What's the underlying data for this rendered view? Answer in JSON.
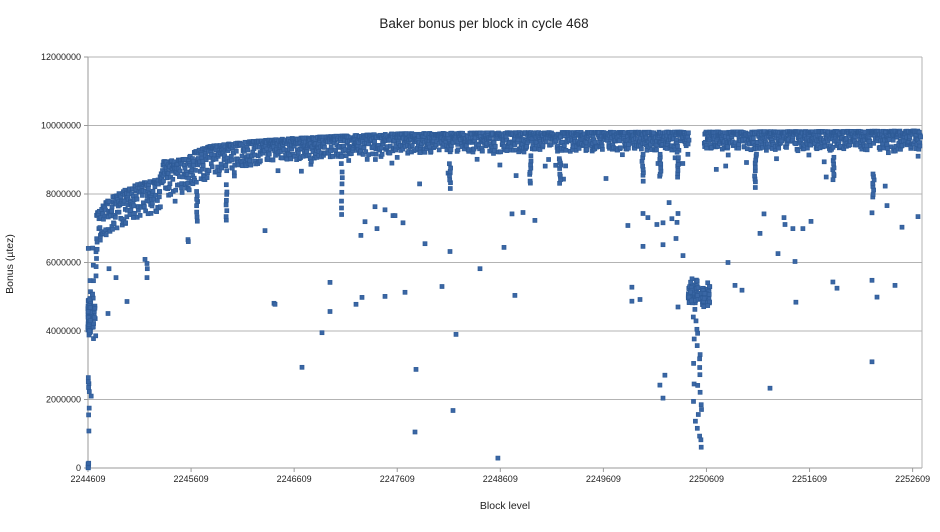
{
  "chart_data": {
    "type": "scatter",
    "title": "Baker bonus per block in cycle 468",
    "xlabel": "Block level",
    "ylabel": "Bonus (µtez)",
    "xlim": [
      2244609,
      2252700
    ],
    "ylim": [
      0,
      12000000
    ],
    "x_ticks": [
      2244609,
      2245609,
      2246609,
      2247609,
      2248609,
      2249609,
      2250609,
      2251609,
      2252609
    ],
    "y_ticks": [
      0,
      2000000,
      4000000,
      6000000,
      8000000,
      10000000,
      12000000
    ],
    "grid": "horizontal-only",
    "legend": "none",
    "marker": {
      "shape": "square",
      "size": 4,
      "fill": "#3a67a5",
      "stroke": "#2e5b97"
    },
    "grid_color": "#b3b3b3",
    "axis_color": "#9a9a9a",
    "synthesis_note": "Dense scatter of ~8000 block bonuses; point cloud described by band profile, clusters, drip columns and explicit outliers (all values in utez).",
    "band_profile": [
      [
        2244690,
        6550000,
        7400000
      ],
      [
        2244790,
        6750000,
        7800000
      ],
      [
        2244920,
        7000000,
        8050000
      ],
      [
        2245110,
        7300000,
        8300000
      ],
      [
        2245300,
        7500000,
        8420000
      ],
      [
        2245340,
        7900000,
        8950000
      ],
      [
        2245560,
        8050000,
        9020000
      ],
      [
        2245660,
        8300000,
        9260000
      ],
      [
        2245810,
        8550000,
        9400000
      ],
      [
        2246080,
        8780000,
        9500000
      ],
      [
        2246470,
        8950000,
        9600000
      ],
      [
        2246960,
        9080000,
        9680000
      ],
      [
        2247640,
        9180000,
        9760000
      ],
      [
        2248610,
        9230000,
        9790000
      ],
      [
        2250550,
        9280000,
        9810000
      ],
      [
        2252700,
        9300000,
        9840000
      ]
    ],
    "band_gap_x": [
      2250440,
      2250585
    ],
    "drip_columns": [
      [
        2245666,
        7250000,
        8100000
      ],
      [
        2245950,
        7200000,
        8250000
      ],
      [
        2247070,
        7400000,
        8900000
      ],
      [
        2248120,
        8200000,
        8900000
      ],
      [
        2248900,
        8300000,
        9100000
      ],
      [
        2249190,
        8300000,
        9000000
      ],
      [
        2249990,
        8400000,
        9200000
      ],
      [
        2250160,
        8500000,
        9200000
      ],
      [
        2250330,
        8500000,
        9200000
      ],
      [
        2251080,
        8200000,
        9000000
      ],
      [
        2251840,
        8400000,
        9100000
      ],
      [
        2252230,
        7900000,
        8600000
      ]
    ],
    "start_cluster": {
      "x_range": [
        2244609,
        2244700
      ],
      "dense_bonus_range": [
        3550000,
        5350000
      ],
      "dense_count": 90,
      "upper_bonus_range": [
        5450000,
        6450000
      ],
      "upper_count": 10,
      "mid_points": [
        [
          2244612,
          2640000
        ],
        [
          2244618,
          2460000
        ],
        [
          2244615,
          2350000
        ],
        [
          2244622,
          2230000
        ],
        [
          2244640,
          2100000
        ],
        [
          2244612,
          2520000
        ]
      ],
      "low_points": [
        [
          2244610,
          120000
        ],
        [
          2244612,
          60000
        ],
        [
          2244611,
          30000
        ],
        [
          2244614,
          90000
        ],
        [
          2244610,
          10000
        ],
        [
          2244616,
          140000
        ],
        [
          2244613,
          5000
        ],
        [
          2244618,
          1080000
        ],
        [
          2244615,
          1550000
        ],
        [
          2244621,
          1750000
        ]
      ]
    },
    "dip_cluster": {
      "x_range": [
        2250430,
        2250645
      ],
      "lobes": [
        {
          "x_range": [
            2250430,
            2250520
          ],
          "bonus_range": [
            4700000,
            5620000
          ],
          "count": 60
        },
        {
          "x_range": [
            2250520,
            2250645
          ],
          "bonus_range": [
            4600000,
            5500000
          ],
          "count": 48
        }
      ],
      "tail": {
        "x_range": [
          2250480,
          2250575
        ],
        "bonus_top": 4600000,
        "bonus_bottom": 620000,
        "count": 24
      }
    },
    "outliers": [
      [
        2244803,
        4510000
      ],
      [
        2244813,
        5820000
      ],
      [
        2244881,
        5560000
      ],
      [
        2244987,
        4860000
      ],
      [
        2245162,
        6090000
      ],
      [
        2245181,
        5970000
      ],
      [
        2245184,
        5820000
      ],
      [
        2245181,
        5560000
      ],
      [
        2245579,
        6670000
      ],
      [
        2245582,
        6610000
      ],
      [
        2246326,
        6930000
      ],
      [
        2246413,
        4810000
      ],
      [
        2246423,
        4780000
      ],
      [
        2246685,
        2940000
      ],
      [
        2246879,
        3950000
      ],
      [
        2246957,
        5420000
      ],
      [
        2246957,
        4570000
      ],
      [
        2247209,
        4780000
      ],
      [
        2247257,
        6790000
      ],
      [
        2247267,
        4980000
      ],
      [
        2247296,
        7190000
      ],
      [
        2247393,
        7630000
      ],
      [
        2247413,
        6990000
      ],
      [
        2247490,
        7540000
      ],
      [
        2247490,
        5010000
      ],
      [
        2247568,
        7370000
      ],
      [
        2247587,
        7370000
      ],
      [
        2247665,
        7160000
      ],
      [
        2247684,
        5130000
      ],
      [
        2247791,
        2880000
      ],
      [
        2247781,
        1050000
      ],
      [
        2247878,
        6550000
      ],
      [
        2248043,
        5300000
      ],
      [
        2248121,
        6320000
      ],
      [
        2248150,
        1680000
      ],
      [
        2248179,
        3900000
      ],
      [
        2248412,
        5820000
      ],
      [
        2248586,
        290000
      ],
      [
        2248645,
        6440000
      ],
      [
        2248722,
        7420000
      ],
      [
        2248751,
        5040000
      ],
      [
        2248829,
        7460000
      ],
      [
        2248945,
        7230000
      ],
      [
        2249847,
        7080000
      ],
      [
        2249886,
        5280000
      ],
      [
        2249886,
        4870000
      ],
      [
        2249964,
        4920000
      ],
      [
        2249993,
        7430000
      ],
      [
        2249993,
        6470000
      ],
      [
        2250041,
        7310000
      ],
      [
        2250128,
        7110000
      ],
      [
        2250157,
        2420000
      ],
      [
        2250187,
        7160000
      ],
      [
        2250187,
        6520000
      ],
      [
        2250187,
        2040000
      ],
      [
        2250206,
        2710000
      ],
      [
        2250274,
        7280000
      ],
      [
        2250313,
        6700000
      ],
      [
        2250323,
        7170000
      ],
      [
        2250333,
        7430000
      ],
      [
        2250333,
        4700000
      ],
      [
        2250381,
        6200000
      ],
      [
        2250818,
        6000000
      ],
      [
        2250886,
        5330000
      ],
      [
        2250954,
        5190000
      ],
      [
        2251128,
        6850000
      ],
      [
        2251167,
        7420000
      ],
      [
        2251225,
        2330000
      ],
      [
        2251303,
        6260000
      ],
      [
        2251361,
        7310000
      ],
      [
        2251371,
        7110000
      ],
      [
        2251448,
        6990000
      ],
      [
        2251468,
        6030000
      ],
      [
        2251477,
        4840000
      ],
      [
        2251545,
        6990000
      ],
      [
        2251623,
        7200000
      ],
      [
        2251836,
        5430000
      ],
      [
        2251875,
        5250000
      ],
      [
        2252215,
        7450000
      ],
      [
        2252215,
        5480000
      ],
      [
        2252215,
        3100000
      ],
      [
        2252263,
        4990000
      ],
      [
        2252360,
        7660000
      ],
      [
        2252438,
        5330000
      ],
      [
        2252506,
        7030000
      ],
      [
        2252661,
        7340000
      ]
    ]
  }
}
